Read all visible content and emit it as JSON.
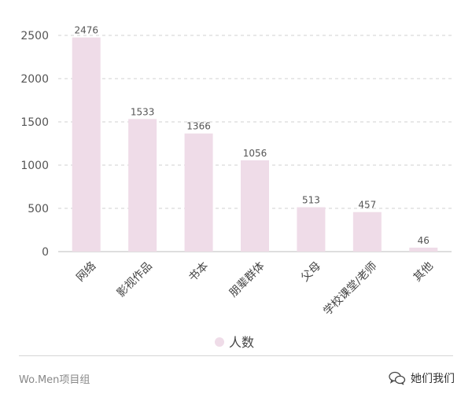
{
  "chart_data": {
    "type": "bar",
    "categories": [
      "网络",
      "影视作品",
      "书本",
      "朋辈群体",
      "父母",
      "学校课堂/老师",
      "其他"
    ],
    "series": [
      {
        "name": "人数",
        "values": [
          2476,
          1533,
          1366,
          1056,
          513,
          457,
          46
        ]
      }
    ],
    "yticks": [
      0,
      500,
      1000,
      1500,
      2000,
      2500
    ],
    "ylim": [
      0,
      2500
    ],
    "grid": true,
    "legend": "bottom-center",
    "bar_color": "#efdce8",
    "legend_marker_color": "#efdce8"
  },
  "footer": {
    "left_text": "Wo.Men项目组",
    "right_text": "她们我们"
  }
}
